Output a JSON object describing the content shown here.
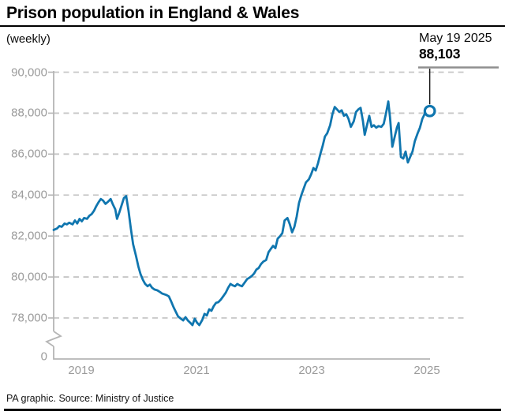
{
  "header": {
    "title": "Prison population in England & Wales",
    "subtitle": "(weekly)"
  },
  "annotation": {
    "date": "May 19 2025",
    "value": "88,103"
  },
  "footer": {
    "credit": "PA graphic. Source: Ministry of Justice"
  },
  "colors": {
    "line": "#1076af",
    "endpoint_fill": "#ffffff",
    "grid": "#c6c6c6",
    "axis": "#b5b5b5",
    "tick_label": "#9b9b9b",
    "annotation_rule": "#8f8f8f",
    "annotation_pointer": "#111111",
    "title_text": "#000000",
    "footer_bar": "#000000"
  },
  "chart_data": {
    "type": "line",
    "title": "Prison population in England & Wales",
    "subtitle": "(weekly)",
    "xlabel": "",
    "ylabel": "",
    "grid": "horizontal-dashed",
    "axis_break": true,
    "ylim": [
      78000,
      90000
    ],
    "y_axis": [
      {
        "label": "90,000",
        "value": 90000
      },
      {
        "label": "88,000",
        "value": 88000
      },
      {
        "label": "86,000",
        "value": 86000
      },
      {
        "label": "84,000",
        "value": 84000
      },
      {
        "label": "82,000",
        "value": 82000
      },
      {
        "label": "80,000",
        "value": 80000
      },
      {
        "label": "78,000",
        "value": 78000
      },
      {
        "label": "0",
        "value": 0
      }
    ],
    "x_ticks": [
      2019,
      2021,
      2023,
      2025
    ],
    "x_tick_labels": [
      "2019",
      "2021",
      "2023",
      "2025"
    ],
    "last_point": {
      "date": "May 19 2025",
      "value": 88103
    },
    "series": [
      {
        "name": "Prison population",
        "color": "#1076af",
        "points": [
          [
            2018.52,
            82300
          ],
          [
            2018.58,
            82370
          ],
          [
            2018.62,
            82490
          ],
          [
            2018.66,
            82450
          ],
          [
            2018.71,
            82610
          ],
          [
            2018.75,
            82570
          ],
          [
            2018.79,
            82650
          ],
          [
            2018.85,
            82570
          ],
          [
            2018.89,
            82760
          ],
          [
            2018.93,
            82610
          ],
          [
            2018.97,
            82840
          ],
          [
            2019.01,
            82720
          ],
          [
            2019.05,
            82880
          ],
          [
            2019.1,
            82840
          ],
          [
            2019.14,
            82990
          ],
          [
            2019.18,
            83070
          ],
          [
            2019.22,
            83230
          ],
          [
            2019.26,
            83460
          ],
          [
            2019.3,
            83650
          ],
          [
            2019.34,
            83810
          ],
          [
            2019.38,
            83730
          ],
          [
            2019.42,
            83570
          ],
          [
            2019.47,
            83690
          ],
          [
            2019.51,
            83810
          ],
          [
            2019.55,
            83540
          ],
          [
            2019.59,
            83300
          ],
          [
            2019.62,
            82840
          ],
          [
            2019.66,
            83150
          ],
          [
            2019.7,
            83500
          ],
          [
            2019.74,
            83850
          ],
          [
            2019.78,
            83950
          ],
          [
            2019.82,
            83230
          ],
          [
            2019.86,
            82370
          ],
          [
            2019.9,
            81600
          ],
          [
            2019.95,
            81020
          ],
          [
            2019.99,
            80520
          ],
          [
            2020.03,
            80130
          ],
          [
            2020.07,
            79860
          ],
          [
            2020.11,
            79660
          ],
          [
            2020.15,
            79550
          ],
          [
            2020.19,
            79630
          ],
          [
            2020.23,
            79470
          ],
          [
            2020.27,
            79390
          ],
          [
            2020.32,
            79350
          ],
          [
            2020.36,
            79280
          ],
          [
            2020.4,
            79200
          ],
          [
            2020.44,
            79160
          ],
          [
            2020.48,
            79120
          ],
          [
            2020.52,
            79050
          ],
          [
            2020.56,
            78810
          ],
          [
            2020.6,
            78540
          ],
          [
            2020.64,
            78310
          ],
          [
            2020.68,
            78080
          ],
          [
            2020.73,
            77960
          ],
          [
            2020.77,
            77880
          ],
          [
            2020.81,
            78040
          ],
          [
            2020.85,
            77880
          ],
          [
            2020.89,
            77770
          ],
          [
            2020.93,
            77650
          ],
          [
            2020.97,
            77960
          ],
          [
            2021.01,
            77770
          ],
          [
            2021.05,
            77650
          ],
          [
            2021.1,
            77900
          ],
          [
            2021.14,
            78200
          ],
          [
            2021.18,
            78120
          ],
          [
            2021.22,
            78420
          ],
          [
            2021.26,
            78350
          ],
          [
            2021.3,
            78580
          ],
          [
            2021.34,
            78740
          ],
          [
            2021.38,
            78770
          ],
          [
            2021.42,
            78890
          ],
          [
            2021.47,
            79080
          ],
          [
            2021.51,
            79240
          ],
          [
            2021.55,
            79470
          ],
          [
            2021.59,
            79660
          ],
          [
            2021.63,
            79590
          ],
          [
            2021.67,
            79550
          ],
          [
            2021.71,
            79660
          ],
          [
            2021.75,
            79590
          ],
          [
            2021.79,
            79550
          ],
          [
            2021.84,
            79740
          ],
          [
            2021.88,
            79900
          ],
          [
            2021.92,
            79970
          ],
          [
            2021.96,
            80050
          ],
          [
            2022.0,
            80170
          ],
          [
            2022.04,
            80360
          ],
          [
            2022.08,
            80440
          ],
          [
            2022.12,
            80630
          ],
          [
            2022.16,
            80750
          ],
          [
            2022.21,
            80830
          ],
          [
            2022.25,
            81210
          ],
          [
            2022.29,
            81370
          ],
          [
            2022.33,
            81520
          ],
          [
            2022.37,
            81410
          ],
          [
            2022.41,
            81870
          ],
          [
            2022.45,
            81990
          ],
          [
            2022.49,
            82140
          ],
          [
            2022.53,
            82760
          ],
          [
            2022.58,
            82880
          ],
          [
            2022.62,
            82570
          ],
          [
            2022.66,
            82180
          ],
          [
            2022.7,
            82450
          ],
          [
            2022.74,
            82950
          ],
          [
            2022.78,
            83610
          ],
          [
            2022.82,
            84000
          ],
          [
            2022.86,
            84310
          ],
          [
            2022.9,
            84620
          ],
          [
            2022.95,
            84770
          ],
          [
            2022.99,
            85010
          ],
          [
            2023.03,
            85320
          ],
          [
            2023.07,
            85200
          ],
          [
            2023.11,
            85550
          ],
          [
            2023.15,
            86010
          ],
          [
            2023.19,
            86400
          ],
          [
            2023.23,
            86860
          ],
          [
            2023.27,
            87020
          ],
          [
            2023.32,
            87410
          ],
          [
            2023.36,
            87950
          ],
          [
            2023.4,
            88300
          ],
          [
            2023.44,
            88180
          ],
          [
            2023.48,
            88060
          ],
          [
            2023.52,
            88140
          ],
          [
            2023.56,
            87870
          ],
          [
            2023.6,
            87950
          ],
          [
            2023.64,
            87720
          ],
          [
            2023.68,
            87330
          ],
          [
            2023.73,
            87600
          ],
          [
            2023.77,
            88060
          ],
          [
            2023.81,
            88180
          ],
          [
            2023.85,
            88260
          ],
          [
            2023.89,
            87600
          ],
          [
            2023.92,
            86940
          ],
          [
            2023.96,
            87410
          ],
          [
            2024.0,
            87870
          ],
          [
            2024.04,
            87330
          ],
          [
            2024.08,
            87410
          ],
          [
            2024.12,
            87290
          ],
          [
            2024.16,
            87370
          ],
          [
            2024.21,
            87330
          ],
          [
            2024.25,
            87480
          ],
          [
            2024.29,
            87990
          ],
          [
            2024.33,
            88570
          ],
          [
            2024.36,
            87790
          ],
          [
            2024.4,
            86360
          ],
          [
            2024.44,
            86830
          ],
          [
            2024.48,
            87290
          ],
          [
            2024.51,
            87520
          ],
          [
            2024.55,
            85860
          ],
          [
            2024.59,
            85780
          ],
          [
            2024.63,
            86130
          ],
          [
            2024.67,
            85590
          ],
          [
            2024.71,
            85860
          ],
          [
            2024.75,
            86130
          ],
          [
            2024.79,
            86630
          ],
          [
            2024.84,
            87020
          ],
          [
            2024.88,
            87290
          ],
          [
            2024.92,
            87720
          ],
          [
            2024.96,
            87950
          ],
          [
            2025.0,
            88060
          ],
          [
            2025.05,
            88103
          ]
        ]
      }
    ]
  }
}
